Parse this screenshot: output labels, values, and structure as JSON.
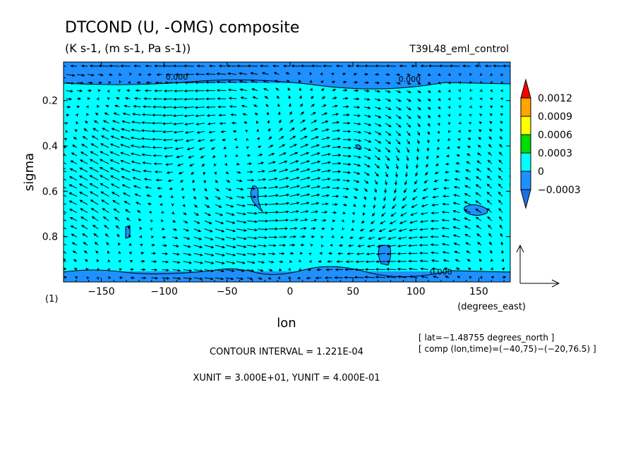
{
  "chart_data": {
    "type": "heatmap",
    "title": "DTCOND (U, -OMG) composite",
    "subtitle": "(K s-1, (m s-1, Pa s-1))",
    "run_label": "T39L48_eml_control",
    "xlabel": "lon",
    "xunit_label": "(degrees_east)",
    "ylabel": "sigma",
    "panel_label": "(1)",
    "xlim": [
      -180,
      175
    ],
    "ylim": [
      1.0,
      0.03
    ],
    "x_ticks": [
      -150,
      -100,
      -50,
      0,
      50,
      100,
      150
    ],
    "x_tick_labels": [
      "−150",
      "−100",
      "−50",
      "0",
      "50",
      "100",
      "150"
    ],
    "y_ticks": [
      0.2,
      0.4,
      0.6,
      0.8
    ],
    "y_tick_labels": [
      "0.2",
      "0.4",
      "0.6",
      "0.8"
    ],
    "colorbar": {
      "levels": [
        "0.0012",
        "0.0009",
        "0.0006",
        "0.0003",
        "0",
        "−0.0003"
      ],
      "colors": [
        "#ff0000",
        "#ffa500",
        "#ffff00",
        "#00dd00",
        "#00ffff",
        "#1e90ff",
        "#1e70e8"
      ]
    },
    "contour_labels": [
      {
        "text": "0.000",
        "lon": -90,
        "sigma": 0.095
      },
      {
        "text": "0.000",
        "lon": 95,
        "sigma": 0.105
      },
      {
        "text": "0.000",
        "lon": 120,
        "sigma": 0.955
      }
    ],
    "info_lines": [
      "[ lat=−1.48755 degrees_north ]",
      "[ comp (lon,time)=(−40,75)−(−20,76.5) ]"
    ],
    "contour_interval": "CONTOUR INTERVAL = 1.221E-04",
    "units_line": "XUNIT = 3.000E+01, YUNIT = 4.000E-01"
  }
}
